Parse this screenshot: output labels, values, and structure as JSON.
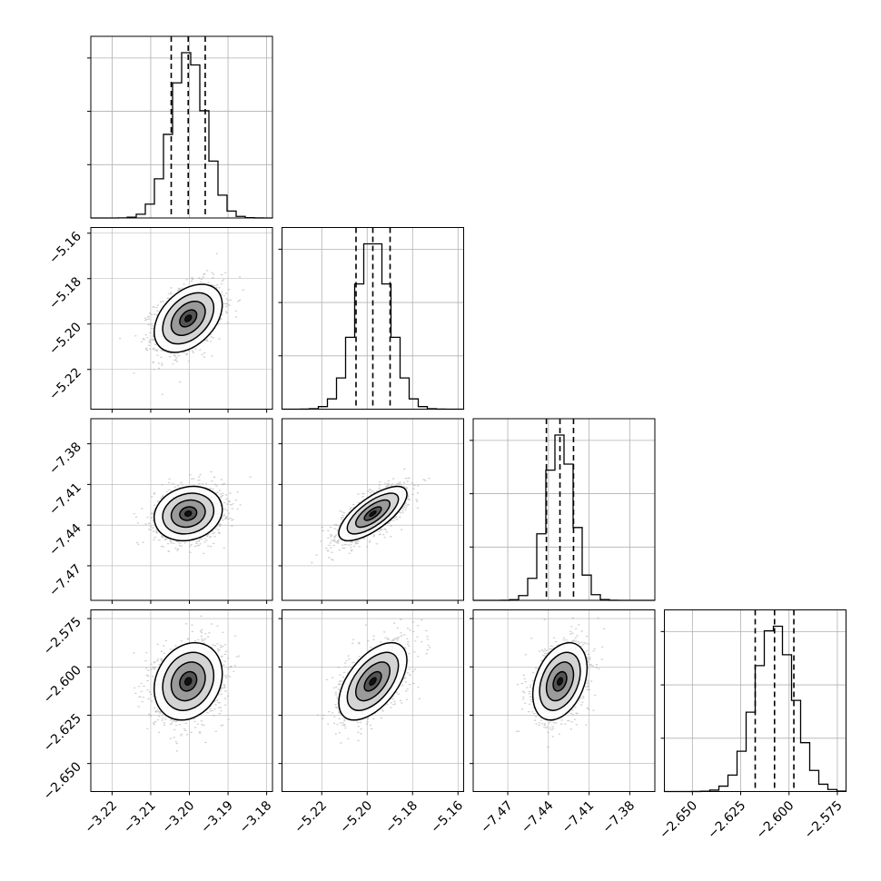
{
  "chart_data": {
    "type": "corner",
    "title": "",
    "quantiles": [
      0.16,
      0.5,
      0.84
    ],
    "grid": true,
    "parameters": [
      {
        "name": "",
        "median": -3.2003,
        "q16": -3.2047,
        "q84": -3.1959,
        "sigma": 0.0044,
        "range": [
          -3.2255,
          -3.1785
        ],
        "ticks": [
          -3.22,
          -3.21,
          -3.2,
          -3.19,
          -3.18
        ],
        "tick_labels": [
          "−3.22",
          "−3.21",
          "−3.20",
          "−3.19",
          "−3.18"
        ]
      },
      {
        "name": "",
        "median": -5.1975,
        "q16": -5.2049,
        "q84": -5.1899,
        "sigma": 0.0075,
        "range": [
          -5.2375,
          -5.1575
        ],
        "ticks": [
          -5.22,
          -5.2,
          -5.18,
          -5.16
        ],
        "tick_labels": [
          "−5.22",
          "−5.20",
          "−5.18",
          "−5.16"
        ]
      },
      {
        "name": "",
        "median": -7.4315,
        "q16": -7.4415,
        "q84": -7.4215,
        "sigma": 0.01,
        "range": [
          -7.4955,
          -7.3615
        ],
        "ticks": [
          -7.47,
          -7.44,
          -7.41,
          -7.38
        ],
        "tick_labels": [
          "−7.47",
          "−7.44",
          "−7.41",
          "−7.38"
        ]
      },
      {
        "name": "",
        "median": -2.6075,
        "q16": -2.6175,
        "q84": -2.5975,
        "sigma": 0.01,
        "range": [
          -2.6645,
          -2.5705
        ],
        "ticks": [
          -2.65,
          -2.625,
          -2.6,
          -2.575
        ],
        "tick_labels": [
          "−2.650",
          "−2.625",
          "−2.600",
          "−2.575"
        ]
      }
    ],
    "correlations": [
      [
        1.0,
        0.4,
        0.15,
        0.2
      ],
      [
        0.4,
        1.0,
        0.72,
        0.55
      ],
      [
        0.15,
        0.72,
        1.0,
        0.35
      ],
      [
        0.2,
        0.55,
        0.35,
        1.0
      ]
    ],
    "histogram_bins": 20,
    "contour_levels_sigma": [
      0.5,
      1.0,
      1.5,
      2.0
    ]
  },
  "colors": {
    "line": "#000000",
    "grid": "#b0b0b0",
    "scatter": "#aaaaaa",
    "background": "#ffffff"
  }
}
